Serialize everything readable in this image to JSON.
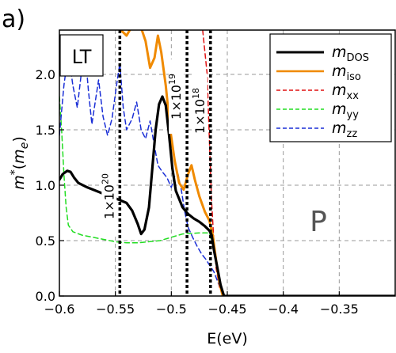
{
  "chart_data": {
    "type": "line",
    "panel_label": "a)",
    "inset_label": "LT",
    "region_label": "P",
    "xlabel": "E(eV)",
    "ylabel_main": "m",
    "ylabel_sup": "*",
    "ylabel_paren_open": "(",
    "ylabel_inner": "m",
    "ylabel_sub": "e",
    "ylabel_paren_close": ")",
    "xlim": [
      -0.6,
      -0.3
    ],
    "ylim": [
      0.0,
      2.4
    ],
    "xticks": [
      -0.6,
      -0.55,
      -0.5,
      -0.45,
      -0.4,
      -0.35
    ],
    "xtick_labels": [
      "−0.6",
      "−0.55",
      "−0.5",
      "−0.45",
      "−0.4",
      "−0.35"
    ],
    "yticks": [
      0.0,
      0.5,
      1.0,
      1.5,
      2.0
    ],
    "ytick_labels": [
      "0.0",
      "0.5",
      "1.0",
      "1.5",
      "2.0"
    ],
    "grid": true,
    "legend_position": "top-right",
    "vlines": [
      {
        "x": -0.546,
        "label_base": "1×10",
        "label_exp": "20"
      },
      {
        "x": -0.486,
        "label_base": "1×10",
        "label_exp": "19"
      },
      {
        "x": -0.465,
        "label_base": "1×10",
        "label_exp": "18"
      }
    ],
    "series": [
      {
        "name_main": "m",
        "name_sub": "DOS",
        "color": "#000000",
        "style": "solid",
        "width": 3.2,
        "points": [
          [
            -0.6,
            1.05
          ],
          [
            -0.597,
            1.1
          ],
          [
            -0.593,
            1.13
          ],
          [
            -0.59,
            1.12
          ],
          [
            -0.587,
            1.07
          ],
          [
            -0.583,
            1.02
          ],
          [
            -0.575,
            0.98
          ],
          [
            -0.565,
            0.94
          ],
          [
            -0.555,
            0.9
          ],
          [
            -0.547,
            0.87
          ],
          [
            -0.54,
            0.84
          ],
          [
            -0.535,
            0.77
          ],
          [
            -0.53,
            0.65
          ],
          [
            -0.527,
            0.56
          ],
          [
            -0.524,
            0.6
          ],
          [
            -0.52,
            0.8
          ],
          [
            -0.517,
            1.15
          ],
          [
            -0.514,
            1.5
          ],
          [
            -0.511,
            1.73
          ],
          [
            -0.508,
            1.8
          ],
          [
            -0.505,
            1.72
          ],
          [
            -0.502,
            1.45
          ],
          [
            -0.499,
            1.15
          ],
          [
            -0.496,
            0.95
          ],
          [
            -0.49,
            0.8
          ],
          [
            -0.485,
            0.74
          ],
          [
            -0.48,
            0.7
          ],
          [
            -0.475,
            0.67
          ],
          [
            -0.47,
            0.63
          ],
          [
            -0.466,
            0.59
          ],
          [
            -0.464,
            0.55
          ],
          [
            -0.462,
            0.42
          ],
          [
            -0.459,
            0.26
          ],
          [
            -0.456,
            0.1
          ],
          [
            -0.453,
            0.0
          ],
          [
            -0.3,
            0.0
          ]
        ]
      },
      {
        "name_main": "m",
        "name_sub": "iso",
        "color": "#f08a00",
        "style": "solid",
        "width": 3,
        "points": [
          [
            -0.545,
            2.4
          ],
          [
            -0.54,
            2.35
          ],
          [
            -0.536,
            2.42
          ],
          [
            -0.527,
            2.42
          ],
          [
            -0.523,
            2.3
          ],
          [
            -0.519,
            2.06
          ],
          [
            -0.515,
            2.15
          ],
          [
            -0.512,
            2.35
          ],
          [
            -0.509,
            2.2
          ],
          [
            -0.505,
            1.9
          ],
          [
            -0.501,
            1.5
          ],
          [
            -0.497,
            1.22
          ],
          [
            -0.493,
            1.02
          ],
          [
            -0.489,
            0.96
          ],
          [
            -0.485,
            1.1
          ],
          [
            -0.482,
            1.18
          ],
          [
            -0.479,
            1.05
          ],
          [
            -0.475,
            0.9
          ],
          [
            -0.47,
            0.76
          ],
          [
            -0.466,
            0.68
          ],
          [
            -0.463,
            0.55
          ],
          [
            -0.46,
            0.32
          ],
          [
            -0.457,
            0.12
          ],
          [
            -0.454,
            0.0
          ]
        ]
      },
      {
        "name_main": "m",
        "name_sub": "xx",
        "color": "#e01010",
        "style": "dashed",
        "width": 1.5,
        "points": [
          [
            -0.472,
            2.4
          ],
          [
            -0.468,
            2.0
          ],
          [
            -0.466,
            1.4
          ],
          [
            -0.464,
            0.85
          ],
          [
            -0.462,
            0.5
          ],
          [
            -0.46,
            0.25
          ],
          [
            -0.457,
            0.08
          ],
          [
            -0.454,
            0.0
          ]
        ]
      },
      {
        "name_main": "m",
        "name_sub": "yy",
        "color": "#22dd22",
        "style": "dashed",
        "width": 1.5,
        "points": [
          [
            -0.6,
            1.8
          ],
          [
            -0.598,
            1.5
          ],
          [
            -0.596,
            1.1
          ],
          [
            -0.594,
            0.8
          ],
          [
            -0.592,
            0.64
          ],
          [
            -0.588,
            0.58
          ],
          [
            -0.58,
            0.55
          ],
          [
            -0.57,
            0.53
          ],
          [
            -0.56,
            0.51
          ],
          [
            -0.55,
            0.49
          ],
          [
            -0.54,
            0.48
          ],
          [
            -0.53,
            0.48
          ],
          [
            -0.52,
            0.49
          ],
          [
            -0.51,
            0.5
          ],
          [
            -0.5,
            0.53
          ],
          [
            -0.49,
            0.56
          ],
          [
            -0.475,
            0.57
          ],
          [
            -0.466,
            0.57
          ],
          [
            -0.462,
            0.42
          ],
          [
            -0.458,
            0.2
          ],
          [
            -0.454,
            0.0
          ]
        ]
      },
      {
        "name_main": "m",
        "name_sub": "zz",
        "color": "#1a2ed6",
        "style": "dashed",
        "width": 1.5,
        "points": [
          [
            -0.6,
            1.45
          ],
          [
            -0.596,
            1.9
          ],
          [
            -0.592,
            2.2
          ],
          [
            -0.588,
            1.9
          ],
          [
            -0.584,
            1.7
          ],
          [
            -0.58,
            2.05
          ],
          [
            -0.577,
            2.2
          ],
          [
            -0.574,
            1.85
          ],
          [
            -0.571,
            1.55
          ],
          [
            -0.568,
            1.75
          ],
          [
            -0.565,
            1.95
          ],
          [
            -0.561,
            1.62
          ],
          [
            -0.557,
            1.45
          ],
          [
            -0.553,
            1.6
          ],
          [
            -0.549,
            1.9
          ],
          [
            -0.546,
            2.1
          ],
          [
            -0.543,
            1.7
          ],
          [
            -0.54,
            1.5
          ],
          [
            -0.535,
            1.6
          ],
          [
            -0.531,
            1.75
          ],
          [
            -0.527,
            1.5
          ],
          [
            -0.523,
            1.42
          ],
          [
            -0.519,
            1.58
          ],
          [
            -0.515,
            1.35
          ],
          [
            -0.512,
            1.18
          ],
          [
            -0.508,
            1.12
          ],
          [
            -0.504,
            1.07
          ],
          [
            -0.5,
            0.98
          ],
          [
            -0.497,
            1.08
          ],
          [
            -0.494,
            1.1
          ],
          [
            -0.491,
            0.95
          ],
          [
            -0.488,
            0.76
          ],
          [
            -0.485,
            0.62
          ],
          [
            -0.481,
            0.53
          ],
          [
            -0.477,
            0.45
          ],
          [
            -0.473,
            0.38
          ],
          [
            -0.469,
            0.33
          ],
          [
            -0.466,
            0.28
          ],
          [
            -0.462,
            0.22
          ],
          [
            -0.459,
            0.14
          ],
          [
            -0.456,
            0.06
          ],
          [
            -0.453,
            0.0
          ],
          [
            -0.3,
            0.0
          ]
        ]
      }
    ]
  }
}
